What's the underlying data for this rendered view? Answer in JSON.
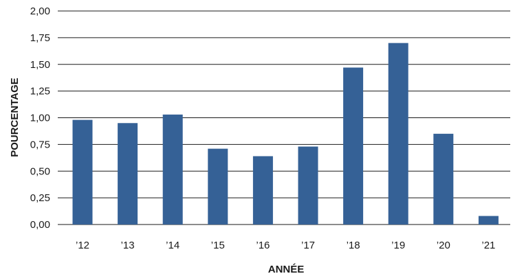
{
  "chart_data": {
    "type": "bar",
    "title": "",
    "xlabel": "ANNÉE",
    "ylabel": "POURCENTAGE",
    "categories": [
      "’12",
      "’13",
      "’14",
      "’15",
      "’16",
      "’17",
      "’18",
      "’19",
      "’20",
      "’21"
    ],
    "values": [
      0.98,
      0.95,
      1.03,
      0.71,
      0.64,
      0.73,
      1.47,
      1.7,
      0.85,
      0.08
    ],
    "ylim": [
      0,
      2
    ],
    "yticks": [
      "0,00",
      "0,25",
      "0,50",
      "0,75",
      "1,00",
      "1,25",
      "1,50",
      "1,75",
      "2,00"
    ],
    "grid": true,
    "bar_color": "#356196"
  }
}
